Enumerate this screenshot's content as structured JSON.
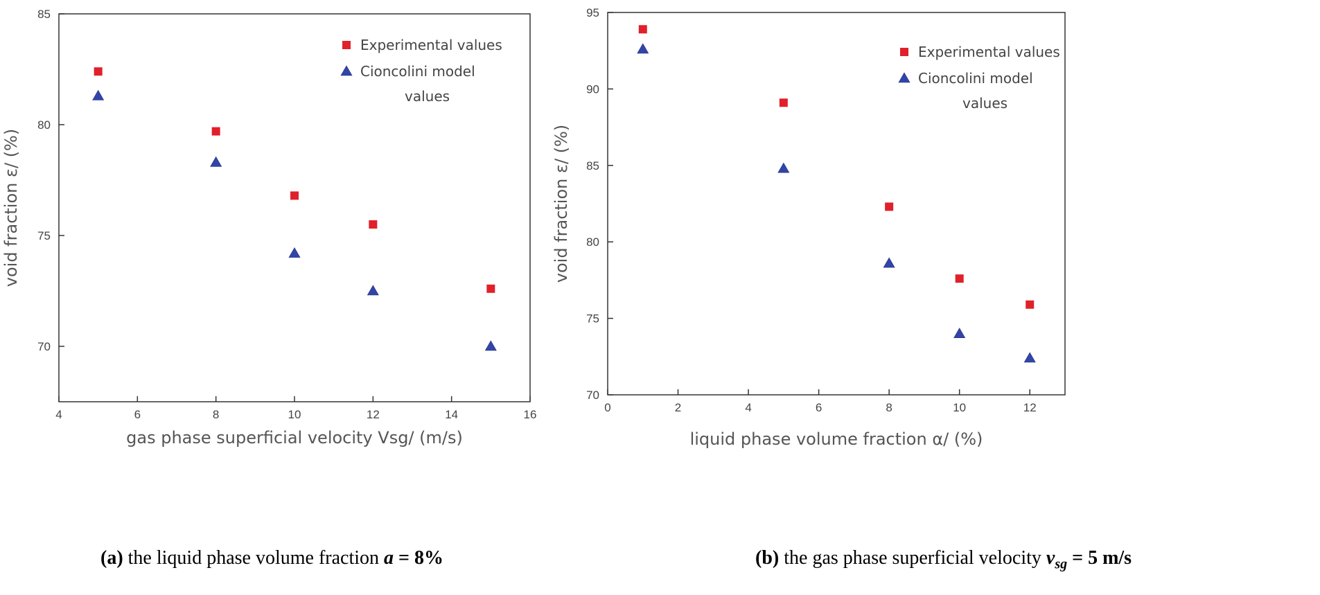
{
  "chart_data": [
    {
      "type": "scatter",
      "xlabel": "gas phase superficial velocity Vsg/ (m/s)",
      "ylabel": "void fraction ε/ (%)",
      "xlim": [
        4,
        16
      ],
      "ylim": [
        67.5,
        85
      ],
      "xticks": [
        "4",
        "6",
        "8",
        "10",
        "12",
        "14",
        "16"
      ],
      "yticks": [
        "70",
        "75",
        "80",
        "85"
      ],
      "legend_position": "top-right",
      "series": [
        {
          "name": "Experimental values",
          "marker": "square",
          "color": "#e0202a",
          "x": [
            5,
            8,
            10,
            12,
            15
          ],
          "y": [
            82.4,
            79.7,
            76.8,
            75.5,
            72.6
          ]
        },
        {
          "name": "Cioncolini model values",
          "name_line1": "Cioncolini model",
          "name_line2": "values",
          "marker": "triangle",
          "color": "#3344a8",
          "x": [
            5,
            8,
            10,
            12,
            15
          ],
          "y": [
            81.3,
            78.3,
            74.2,
            72.5,
            70.0
          ]
        }
      ]
    },
    {
      "type": "scatter",
      "xlabel": "liquid phase volume fraction α/ (%)",
      "ylabel": "void fraction ε/ (%)",
      "xlim": [
        0,
        13
      ],
      "ylim": [
        70,
        95
      ],
      "xticks": [
        "0",
        "2",
        "4",
        "6",
        "8",
        "10",
        "12"
      ],
      "yticks": [
        "70",
        "75",
        "80",
        "85",
        "90",
        "95"
      ],
      "legend_position": "top-right",
      "series": [
        {
          "name": "Experimental values",
          "marker": "square",
          "color": "#e0202a",
          "x": [
            1,
            5,
            8,
            10,
            12
          ],
          "y": [
            93.9,
            89.1,
            82.3,
            77.6,
            75.9
          ]
        },
        {
          "name": "Cioncolini model values",
          "name_line1": "Cioncolini model",
          "name_line2": "values",
          "marker": "triangle",
          "color": "#3344a8",
          "x": [
            1,
            5,
            8,
            10,
            12
          ],
          "y": [
            92.6,
            84.8,
            78.6,
            74.0,
            72.4
          ]
        }
      ]
    }
  ],
  "captions": {
    "a": {
      "label": "(a)",
      "text": " the liquid phase volume fraction ",
      "var": "a",
      "eq": " = 8%"
    },
    "b": {
      "label": "(b)",
      "text": " the gas phase superficial velocity ",
      "var": "v",
      "sub": "sg",
      "eq": " = 5 m/s"
    }
  }
}
